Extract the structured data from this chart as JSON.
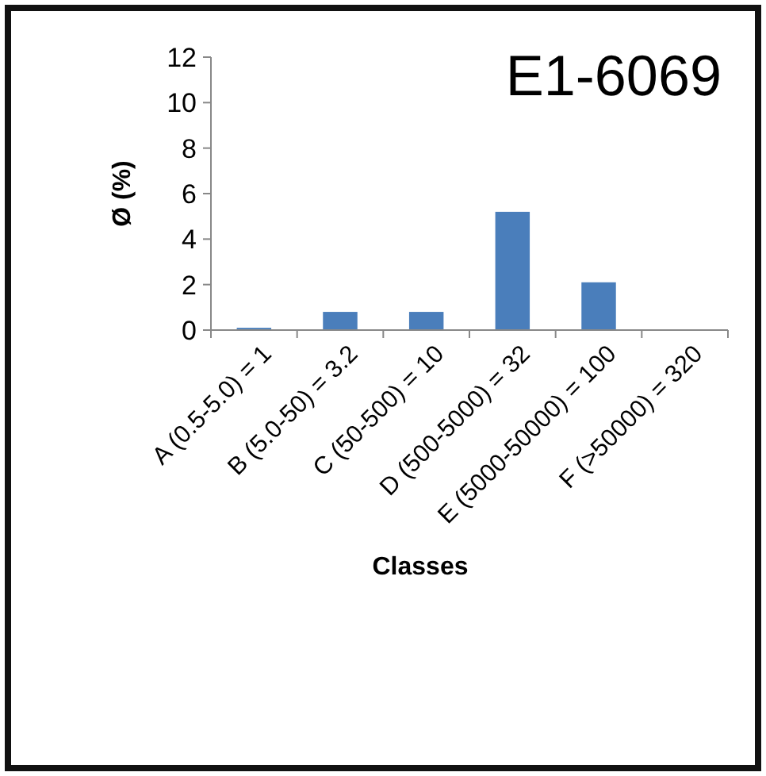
{
  "chart_data": {
    "type": "bar",
    "title": "E1-6069",
    "xlabel": "Classes",
    "ylabel": "Ø (%)",
    "categories": [
      "A (0.5-5.0) = 1",
      "B (5.0-50) = 3.2",
      "C (50-500) = 10",
      "D (500-5000) = 32",
      "E (5000-50000) = 100",
      "F (>50000) = 320"
    ],
    "values": [
      0.1,
      0.8,
      0.8,
      5.2,
      2.1,
      0
    ],
    "color": "#4a7ebb",
    "ylim": [
      0,
      12
    ],
    "yticks": [
      0,
      2,
      4,
      6,
      8,
      10,
      12
    ],
    "grid": false
  }
}
